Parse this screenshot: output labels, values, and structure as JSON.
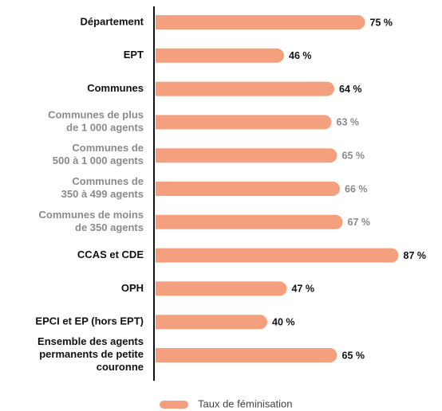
{
  "chart_data": {
    "type": "bar",
    "orientation": "horizontal",
    "categories": [
      "Département",
      "EPT",
      "Communes",
      "Communes de plus\nde 1 000 agents",
      "Communes de\n500 à 1 000 agents",
      "Communes de\n350 à 499 agents",
      "Communes de moins\nde 350 agents",
      "CCAS et CDE",
      "OPH",
      "EPCI et EP (hors EPT)",
      "Ensemble des agents\npermanents de petite\ncouronne"
    ],
    "category_colors": [
      "#111111",
      "#111111",
      "#111111",
      "#8a8a8a",
      "#8a8a8a",
      "#8a8a8a",
      "#8a8a8a",
      "#111111",
      "#111111",
      "#111111",
      "#111111"
    ],
    "series": [
      {
        "name": "Taux de féminisation",
        "color": "#f4a07f",
        "values": [
          75,
          46,
          64,
          63,
          65,
          66,
          67,
          87,
          47,
          40,
          65
        ],
        "value_labels": [
          "75 %",
          "46 %",
          "64 %",
          "63 %",
          "65 %",
          "66 %",
          "67 %",
          "87 %",
          "47 %",
          "40 %",
          "65 %"
        ]
      }
    ],
    "legend": "bottom"
  }
}
